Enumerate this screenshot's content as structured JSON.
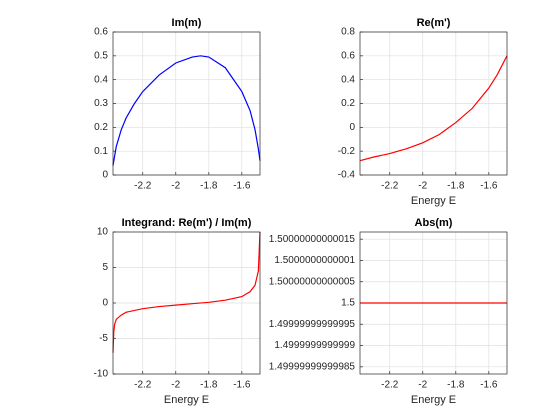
{
  "chart_data": [
    {
      "type": "line",
      "title": "Im(m)",
      "x": [
        -2.38,
        -2.36,
        -2.33,
        -2.3,
        -2.25,
        -2.2,
        -2.1,
        -2.0,
        -1.9,
        -1.85,
        -1.8,
        -1.7,
        -1.6,
        -1.55,
        -1.52,
        -1.5,
        -1.49
      ],
      "series": [
        {
          "name": "Im(m)",
          "color": "#0000ff",
          "values": [
            0.04,
            0.12,
            0.19,
            0.24,
            0.3,
            0.35,
            0.42,
            0.47,
            0.495,
            0.5,
            0.495,
            0.45,
            0.35,
            0.27,
            0.19,
            0.11,
            0.06
          ]
        }
      ],
      "xlim": [
        -2.38,
        -1.49
      ],
      "xticks": [
        -2.2,
        -2,
        -1.8,
        -1.6
      ],
      "ylim": [
        0,
        0.6
      ],
      "yticks": [
        0,
        0.1,
        0.2,
        0.3,
        0.4,
        0.5,
        0.6
      ],
      "grid": true
    },
    {
      "type": "line",
      "title": "Re(m')",
      "x_label": "Energy E",
      "x": [
        -2.38,
        -2.3,
        -2.2,
        -2.1,
        -2.0,
        -1.9,
        -1.8,
        -1.7,
        -1.6,
        -1.55,
        -1.49
      ],
      "series": [
        {
          "name": "Re(m')",
          "color": "#ff0000",
          "values": [
            -0.28,
            -0.25,
            -0.22,
            -0.18,
            -0.13,
            -0.06,
            0.04,
            0.16,
            0.33,
            0.44,
            0.6
          ]
        }
      ],
      "xlim": [
        -2.38,
        -1.49
      ],
      "xticks": [
        -2.2,
        -2,
        -1.8,
        -1.6
      ],
      "ylim": [
        -0.4,
        0.8
      ],
      "yticks": [
        -0.4,
        -0.2,
        0,
        0.2,
        0.4,
        0.6,
        0.8
      ],
      "grid": true
    },
    {
      "type": "line",
      "title": "Integrand: Re(m') / Im(m)",
      "x_label": "Energy E",
      "x": [
        -2.38,
        -2.375,
        -2.37,
        -2.36,
        -2.33,
        -2.3,
        -2.2,
        -2.1,
        -2.0,
        -1.9,
        -1.8,
        -1.7,
        -1.6,
        -1.55,
        -1.52,
        -1.5,
        -1.49
      ],
      "series": [
        {
          "name": "Integrand",
          "color": "#ff0000",
          "values": [
            -7,
            -4,
            -3,
            -2.3,
            -1.7,
            -1.3,
            -0.8,
            -0.5,
            -0.3,
            -0.1,
            0.1,
            0.4,
            0.9,
            1.6,
            2.5,
            4.5,
            10
          ]
        }
      ],
      "xlim": [
        -2.38,
        -1.49
      ],
      "xticks": [
        -2.2,
        -2,
        -1.8,
        -1.6
      ],
      "ylim": [
        -10,
        10
      ],
      "yticks": [
        -10,
        -5,
        0,
        5,
        10
      ],
      "grid": true
    },
    {
      "type": "line",
      "title": "Abs(m)",
      "x_label": "Energy E",
      "x": [
        -2.38,
        -2.2,
        -2.0,
        -1.8,
        -1.6,
        -1.49
      ],
      "series": [
        {
          "name": "Abs(m)",
          "color": "#ff0000",
          "values": [
            1.5,
            1.5,
            1.5,
            1.5,
            1.5,
            1.5
          ]
        }
      ],
      "xlim": [
        -2.38,
        -1.49
      ],
      "xticks": [
        -2.2,
        -2,
        -1.8,
        -1.6
      ],
      "ylim": [
        1.499999999999833,
        1.500000000000167
      ],
      "yticks": [
        {
          "value": 1.49999999999985,
          "label": "1.49999999999985"
        },
        {
          "value": 1.4999999999999,
          "label": "1.4999999999999"
        },
        {
          "value": 1.49999999999995,
          "label": "1.49999999999995"
        },
        1.5,
        {
          "value": 1.50000000000005,
          "label": "1.50000000000005"
        },
        {
          "value": 1.5000000000001,
          "label": "1.5000000000001"
        },
        {
          "value": 1.50000000000015,
          "label": "1.50000000000015"
        }
      ],
      "grid": true
    }
  ]
}
